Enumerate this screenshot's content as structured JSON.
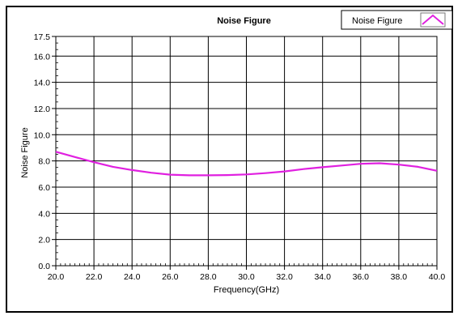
{
  "chart_data": {
    "type": "line",
    "title": "Noise Figure",
    "xlabel": "Frequency(GHz)",
    "ylabel": "Noise Figure",
    "xlim": [
      20.0,
      40.0
    ],
    "ylim": [
      0.0,
      17.5
    ],
    "x_ticks": [
      20.0,
      22.0,
      24.0,
      26.0,
      28.0,
      30.0,
      32.0,
      34.0,
      36.0,
      38.0,
      40.0
    ],
    "x_tick_labels": [
      "20.0",
      "22.0",
      "24.0",
      "26.0",
      "28.0",
      "30.0",
      "32.0",
      "34.0",
      "36.0",
      "38.0",
      "40.0"
    ],
    "y_ticks": [
      0.0,
      2.0,
      4.0,
      6.0,
      8.0,
      10.0,
      12.0,
      14.0,
      16.0,
      17.5
    ],
    "y_tick_labels": [
      "0.0",
      "2.0",
      "4.0",
      "6.0",
      "8.0",
      "10.0",
      "12.0",
      "14.0",
      "16.0",
      "17.5"
    ],
    "grid": true,
    "legend_position": "top-right",
    "series": [
      {
        "name": "Noise Figure",
        "color": "#e020e0",
        "x": [
          20.0,
          21.0,
          22.0,
          23.0,
          24.0,
          25.0,
          26.0,
          27.0,
          28.0,
          29.0,
          30.0,
          31.0,
          32.0,
          33.0,
          34.0,
          35.0,
          36.0,
          37.0,
          38.0,
          39.0,
          40.0
        ],
        "y": [
          8.7,
          8.3,
          7.9,
          7.55,
          7.3,
          7.1,
          6.95,
          6.9,
          6.9,
          6.92,
          6.97,
          7.07,
          7.2,
          7.38,
          7.52,
          7.65,
          7.78,
          7.82,
          7.72,
          7.55,
          7.25
        ]
      }
    ]
  }
}
